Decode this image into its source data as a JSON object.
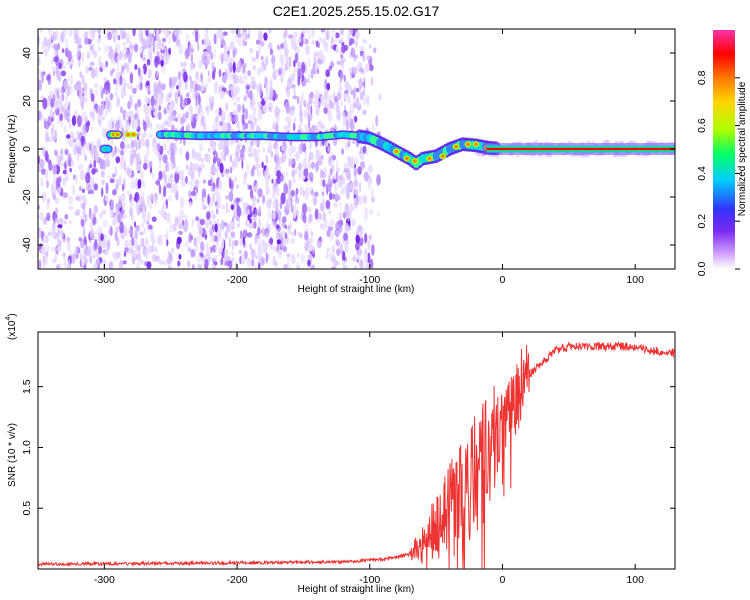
{
  "title": "C2E1.2025.255.15.02.G17",
  "chart_data": [
    {
      "type": "heatmap",
      "xlabel": "Height of straight line (km)",
      "ylabel": "Frequency (Hz)",
      "xlim": [
        -350,
        130
      ],
      "ylim": [
        -50,
        50
      ],
      "xticks": [
        -300,
        -200,
        -100,
        0,
        100
      ],
      "yticks": [
        -40,
        -20,
        0,
        20,
        40
      ],
      "colorbar": {
        "label": "Normalized spectral amplitude",
        "range": [
          0,
          1
        ],
        "ticks": [
          "0.0",
          "0.2",
          "0.4",
          "0.6",
          "0.8"
        ],
        "tick_values": [
          0.0,
          0.2,
          0.4,
          0.6,
          0.8
        ],
        "colors": [
          "#ffffff",
          "#cc99ff",
          "#7a2af0",
          "#3333ff",
          "#00ccff",
          "#00ff66",
          "#aaff00",
          "#ffd400",
          "#ff7700",
          "#ff0000",
          "#ff33aa"
        ]
      },
      "ridge": {
        "x": [
          -295,
          -280,
          -250,
          -230,
          -200,
          -180,
          -160,
          -140,
          -120,
          -110,
          -100,
          -90,
          -80,
          -70,
          -65,
          -60,
          -50,
          -40,
          -30,
          -20,
          -10,
          0,
          130
        ],
        "y": [
          6,
          6,
          6,
          5.5,
          5.5,
          5.5,
          5,
          5,
          6,
          5.5,
          4.5,
          2,
          -1,
          -4,
          -6,
          -4,
          -3,
          0,
          2,
          1.5,
          0.5,
          0,
          0
        ]
      },
      "noise_extent_x": [
        -350,
        -110
      ]
    },
    {
      "type": "line",
      "xlabel": "Height of straight line (km)",
      "ylabel": "SNR (10 * v/v)",
      "scale_note": "(x10",
      "scale_exp": "4",
      "xlim": [
        -350,
        130
      ],
      "ylim": [
        0,
        1.95
      ],
      "xticks": [
        -300,
        -200,
        -100,
        0,
        100
      ],
      "yticks": [
        0.5,
        1.0,
        1.5
      ],
      "ytick_labels": [
        "0.5",
        "1.0",
        "1.5"
      ],
      "color": "#ee3333",
      "trend": {
        "x": [
          -350,
          -200,
          -120,
          -90,
          -70,
          -60,
          -50,
          -40,
          -30,
          -20,
          -10,
          0,
          10,
          20,
          30,
          40,
          50,
          70,
          90,
          110,
          130
        ],
        "y": [
          0.04,
          0.05,
          0.06,
          0.08,
          0.12,
          0.2,
          0.35,
          0.5,
          0.6,
          0.78,
          0.95,
          1.2,
          1.42,
          1.6,
          1.7,
          1.8,
          1.83,
          1.83,
          1.83,
          1.8,
          1.78
        ]
      }
    }
  ]
}
